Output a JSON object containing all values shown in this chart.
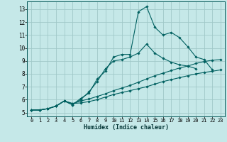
{
  "xlabel": "Humidex (Indice chaleur)",
  "xlim": [
    -0.5,
    23.5
  ],
  "ylim": [
    4.7,
    13.6
  ],
  "xticks": [
    0,
    1,
    2,
    3,
    4,
    5,
    6,
    7,
    8,
    9,
    10,
    11,
    12,
    13,
    14,
    15,
    16,
    17,
    18,
    19,
    20,
    21,
    22,
    23
  ],
  "yticks": [
    5,
    6,
    7,
    8,
    9,
    10,
    11,
    12,
    13
  ],
  "background_color": "#c5e8e8",
  "grid_color": "#a0c8c8",
  "line_color": "#006060",
  "lines": [
    {
      "x": [
        0,
        1,
        2,
        3,
        4,
        5,
        6,
        7,
        8,
        9,
        10,
        11,
        12,
        13,
        14,
        15,
        16,
        17,
        18,
        19,
        20,
        21,
        22
      ],
      "y": [
        5.2,
        5.2,
        5.3,
        5.5,
        5.9,
        5.6,
        6.1,
        6.5,
        7.6,
        8.2,
        9.3,
        9.5,
        9.5,
        12.8,
        13.2,
        11.6,
        11.0,
        11.2,
        10.8,
        10.1,
        9.3,
        9.1,
        8.3
      ]
    },
    {
      "x": [
        0,
        1,
        2,
        3,
        4,
        5,
        6,
        7,
        8,
        9,
        10,
        11,
        12,
        13,
        14,
        15,
        16,
        17,
        18,
        19,
        20
      ],
      "y": [
        5.2,
        5.2,
        5.3,
        5.5,
        5.9,
        5.6,
        6.0,
        6.6,
        7.4,
        8.4,
        9.0,
        9.1,
        9.3,
        9.6,
        10.3,
        9.6,
        9.2,
        8.9,
        8.7,
        8.6,
        8.4
      ]
    },
    {
      "x": [
        0,
        1,
        2,
        3,
        4,
        5,
        6,
        7,
        8,
        9,
        10,
        11,
        12,
        13,
        14,
        15,
        16,
        17,
        18,
        19,
        20,
        21,
        22,
        23
      ],
      "y": [
        5.2,
        5.2,
        5.3,
        5.5,
        5.9,
        5.7,
        5.75,
        5.85,
        6.0,
        6.2,
        6.4,
        6.55,
        6.7,
        6.85,
        7.0,
        7.2,
        7.4,
        7.55,
        7.7,
        7.85,
        8.0,
        8.1,
        8.2,
        8.3
      ]
    },
    {
      "x": [
        0,
        1,
        2,
        3,
        4,
        5,
        6,
        7,
        8,
        9,
        10,
        11,
        12,
        13,
        14,
        15,
        16,
        17,
        18,
        19,
        20,
        21,
        22,
        23
      ],
      "y": [
        5.2,
        5.2,
        5.3,
        5.5,
        5.9,
        5.7,
        5.9,
        6.05,
        6.25,
        6.45,
        6.7,
        6.9,
        7.1,
        7.35,
        7.6,
        7.85,
        8.05,
        8.25,
        8.45,
        8.6,
        8.8,
        8.95,
        9.05,
        9.1
      ]
    }
  ]
}
